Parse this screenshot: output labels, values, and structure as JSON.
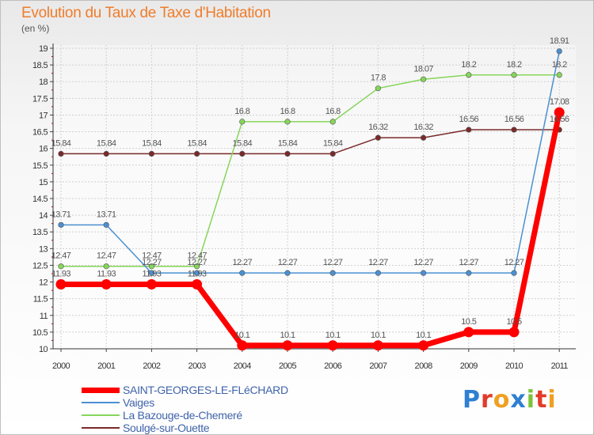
{
  "title": "Evolution du Taux de Taxe d'Habitation",
  "subtitle": "(en %)",
  "brand": {
    "letters": [
      {
        "ch": "P",
        "color": "#2f7fd2"
      },
      {
        "ch": "r",
        "color": "#e23b2a"
      },
      {
        "ch": "o",
        "color": "#f0a020"
      },
      {
        "ch": "x",
        "color": "#2f7fd2"
      },
      {
        "ch": "i",
        "color": "#7cc33a"
      },
      {
        "ch": "t",
        "color": "#e23b2a"
      },
      {
        "ch": "i",
        "color": "#f0a020"
      }
    ]
  },
  "chart_data": {
    "type": "line",
    "title": "Evolution du Taux de Taxe d'Habitation",
    "ylabel": "(en %)",
    "xlabel": "",
    "ylim": [
      10,
      19
    ],
    "yticks": [
      "10",
      "10.5",
      "11",
      "11.5",
      "12",
      "12.5",
      "13",
      "13.5",
      "14",
      "14.5",
      "15",
      "15.5",
      "16",
      "16.5",
      "17",
      "17.5",
      "18",
      "18.5",
      "19"
    ],
    "categories": [
      "2000",
      "2001",
      "2002",
      "2003",
      "2004",
      "2005",
      "2006",
      "2007",
      "2008",
      "2009",
      "2010",
      "2011"
    ],
    "legend_position": "bottom-left",
    "series": [
      {
        "name": "SAINT-GEORGES-LE-FLéCHARD",
        "color": "#ff0000",
        "values": [
          11.93,
          11.93,
          11.93,
          11.93,
          10.1,
          10.1,
          10.1,
          10.1,
          10.1,
          10.5,
          10.5,
          17.08
        ],
        "labels": [
          "11.93",
          "11.93",
          "11.93",
          "11.93",
          "10.1",
          "10.1",
          "10.1",
          "10.1",
          "10.1",
          "10.5",
          "10.5",
          "17.08"
        ]
      },
      {
        "name": "Vaiges",
        "color": "#4a90d2",
        "values": [
          13.71,
          13.71,
          12.27,
          12.27,
          12.27,
          12.27,
          12.27,
          12.27,
          12.27,
          12.27,
          12.27,
          18.91
        ],
        "labels": [
          "13.71",
          "13.71",
          "12.27",
          "12.27",
          "12.27",
          "12.27",
          "12.27",
          "12.27",
          "12.27",
          "12.27",
          "12.27",
          "18.91"
        ]
      },
      {
        "name": "La Bazouge-de-Chemeré",
        "color": "#86d65a",
        "values": [
          12.47,
          12.47,
          12.47,
          12.47,
          16.8,
          16.8,
          16.8,
          17.8,
          18.07,
          18.2,
          18.2,
          18.2
        ],
        "labels": [
          "12.47",
          "12.47",
          "12.47",
          "12.47",
          "16.8",
          "16.8",
          "16.8",
          "17.8",
          "18.07",
          "18.2",
          "18.2",
          "18.2"
        ]
      },
      {
        "name": "Soulgé-sur-Ouette",
        "color": "#7a2a2a",
        "values": [
          15.84,
          15.84,
          15.84,
          15.84,
          15.84,
          15.84,
          15.84,
          16.32,
          16.32,
          16.56,
          16.56,
          16.56
        ],
        "labels": [
          "15.84",
          "15.84",
          "15.84",
          "15.84",
          "15.84",
          "15.84",
          "15.84",
          "16.32",
          "16.32",
          "16.56",
          "16.56",
          "16.56"
        ]
      }
    ]
  }
}
